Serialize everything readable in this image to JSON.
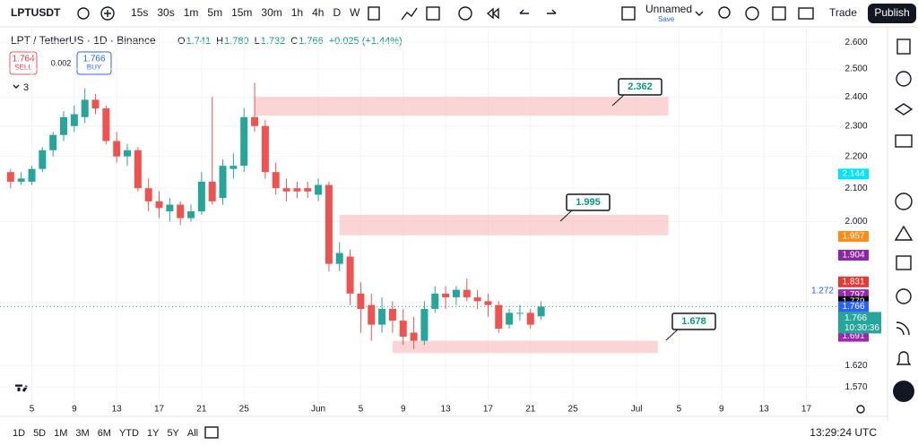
{
  "toolbar": {
    "symbol": "LPTUSDT",
    "intervals": [
      "15s",
      "30s",
      "1m",
      "5m",
      "15m",
      "30m",
      "1h",
      "4h",
      "D",
      "W"
    ],
    "layout_name": "Unnamed",
    "save": "Save",
    "trade": "Trade",
    "publish": "Publish"
  },
  "chart_data": {
    "type": "candlestick",
    "title": "LPT / TetherUS · 1D · Binance",
    "legend_items": [
      {
        "key": "O",
        "value": "1.741"
      },
      {
        "key": "H",
        "value": "1.780"
      },
      {
        "key": "L",
        "value": "1.732"
      },
      {
        "key": "C",
        "value": "1.766"
      }
    ],
    "change": "+0.025 (+1.44%)",
    "quotes": {
      "sell_price": "1.764",
      "sell": "SELL",
      "spread": "0.002",
      "buy_price": "1.766",
      "buy": "BUY"
    },
    "indicators_count": "3",
    "x": [
      3,
      4,
      5,
      6,
      7,
      8,
      9,
      10,
      11,
      12,
      13,
      14,
      15,
      16,
      17,
      18,
      19,
      20,
      21,
      22,
      23,
      24,
      25,
      26,
      27,
      28,
      29,
      30,
      31,
      32,
      33,
      34,
      35,
      36,
      37,
      38,
      39,
      40,
      41,
      42,
      43,
      44,
      45,
      46,
      47,
      48,
      49,
      50,
      51,
      52,
      53
    ],
    "open": [
      2.15,
      2.12,
      2.12,
      2.16,
      2.22,
      2.27,
      2.3,
      2.33,
      2.39,
      2.36,
      2.25,
      2.2,
      2.22,
      2.1,
      2.06,
      2.03,
      2.05,
      2.01,
      2.03,
      2.12,
      2.07,
      2.16,
      2.17,
      2.33,
      2.3,
      2.15,
      2.1,
      2.1,
      2.1,
      2.08,
      2.11,
      1.88,
      1.9,
      1.8,
      1.77,
      1.72,
      1.76,
      1.73,
      1.7,
      1.68,
      1.76,
      1.8,
      1.79,
      1.81,
      1.79,
      1.78,
      1.77,
      1.72,
      1.75,
      1.75,
      1.741
    ],
    "high": [
      2.16,
      2.15,
      2.17,
      2.23,
      2.28,
      2.35,
      2.37,
      2.43,
      2.41,
      2.37,
      2.28,
      2.24,
      2.23,
      2.13,
      2.09,
      2.07,
      2.06,
      2.05,
      2.15,
      2.4,
      2.19,
      2.21,
      2.36,
      2.45,
      2.32,
      2.18,
      2.13,
      2.12,
      2.12,
      2.13,
      2.12,
      1.94,
      1.92,
      1.83,
      1.8,
      1.79,
      1.78,
      1.76,
      1.74,
      1.78,
      1.82,
      1.82,
      1.82,
      1.84,
      1.81,
      1.8,
      1.78,
      1.76,
      1.77,
      1.76,
      1.78
    ],
    "low": [
      2.1,
      2.11,
      2.11,
      2.15,
      2.2,
      2.25,
      2.28,
      2.31,
      2.34,
      2.24,
      2.18,
      2.17,
      2.09,
      2.03,
      2.01,
      2.0,
      1.99,
      2.0,
      2.02,
      2.05,
      2.05,
      2.13,
      2.15,
      2.28,
      2.13,
      2.08,
      2.06,
      2.07,
      2.07,
      2.06,
      1.86,
      1.86,
      1.77,
      1.7,
      1.68,
      1.7,
      1.7,
      1.67,
      1.66,
      1.67,
      1.75,
      1.76,
      1.77,
      1.78,
      1.76,
      1.74,
      1.7,
      1.71,
      1.73,
      1.71,
      1.732
    ],
    "close": [
      2.12,
      2.13,
      2.16,
      2.22,
      2.27,
      2.33,
      2.34,
      2.39,
      2.36,
      2.25,
      2.2,
      2.22,
      2.1,
      2.06,
      2.04,
      2.05,
      2.01,
      2.03,
      2.12,
      2.06,
      2.17,
      2.17,
      2.33,
      2.3,
      2.15,
      2.1,
      2.09,
      2.09,
      2.09,
      2.11,
      1.88,
      1.91,
      1.8,
      1.76,
      1.72,
      1.76,
      1.73,
      1.69,
      1.68,
      1.76,
      1.8,
      1.79,
      1.81,
      1.79,
      1.78,
      1.77,
      1.71,
      1.75,
      1.75,
      1.72,
      1.766
    ],
    "up_color": "#26a69a",
    "down_color": "#ef5350",
    "xlim": [
      2,
      81
    ],
    "xticks": [
      {
        "value": 5,
        "label": "5"
      },
      {
        "value": 9,
        "label": "9"
      },
      {
        "value": 13,
        "label": "13"
      },
      {
        "value": 17,
        "label": "17"
      },
      {
        "value": 21,
        "label": "21"
      },
      {
        "value": 25,
        "label": "25"
      },
      {
        "value": 32,
        "label": "Jun"
      },
      {
        "value": 36,
        "label": "5"
      },
      {
        "value": 40,
        "label": "9"
      },
      {
        "value": 44,
        "label": "13"
      },
      {
        "value": 48,
        "label": "17"
      },
      {
        "value": 52,
        "label": "21"
      },
      {
        "value": 56,
        "label": "25"
      },
      {
        "value": 62,
        "label": "Jul"
      },
      {
        "value": 66,
        "label": "5"
      },
      {
        "value": 70,
        "label": "9"
      },
      {
        "value": 74,
        "label": "13"
      },
      {
        "value": 78,
        "label": "17"
      }
    ],
    "ylim": [
      1.544,
      2.652
    ],
    "log_scale": true,
    "grid": true,
    "yticks": [
      {
        "value": 2.6,
        "label": "2.600"
      },
      {
        "value": 2.5,
        "label": "2.500"
      },
      {
        "value": 2.4,
        "label": "2.400"
      },
      {
        "value": 2.3,
        "label": "2.300"
      },
      {
        "value": 2.2,
        "label": "2.200"
      },
      {
        "value": 2.1,
        "label": "2.100"
      },
      {
        "value": 2.0,
        "label": "2.000"
      },
      {
        "value": 1.62,
        "label": "1.620"
      },
      {
        "value": 1.57,
        "label": "1.570"
      }
    ],
    "zones": [
      {
        "value": 2.362,
        "top": 2.4,
        "bottom": 2.335,
        "start": 26,
        "end": 65
      },
      {
        "value": 1.995,
        "top": 2.02,
        "bottom": 1.96,
        "start": 34,
        "end": 65
      },
      {
        "value": 1.678,
        "top": 1.68,
        "bottom": 1.65,
        "start": 39,
        "end": 64
      }
    ],
    "zone_color": "#f8b9b9",
    "price_labels": [
      {
        "value": 2.144,
        "color": "#00e5ff"
      },
      {
        "value": 1.957,
        "color": "#ff8c1a"
      },
      {
        "value": 1.904,
        "color": "#8e24aa"
      },
      {
        "value": 1.831,
        "color": "#e53935"
      },
      {
        "value": 1.797,
        "color": "#9c27b0"
      },
      {
        "value": 1.779,
        "color": "#000000"
      },
      {
        "value": 1.691,
        "color": "#9c27b0"
      }
    ],
    "last_price": {
      "value": 1.766,
      "color": "#26a69a",
      "countdown": "10:30:36"
    },
    "bid_label": {
      "value": 1.766,
      "color": "#2962ff"
    },
    "fib_label": "1.272"
  },
  "bottom_bar": {
    "ranges": [
      "1D",
      "5D",
      "1M",
      "3M",
      "6M",
      "YTD",
      "1Y",
      "5Y",
      "All"
    ],
    "clock": "13:29:24 UTC"
  }
}
